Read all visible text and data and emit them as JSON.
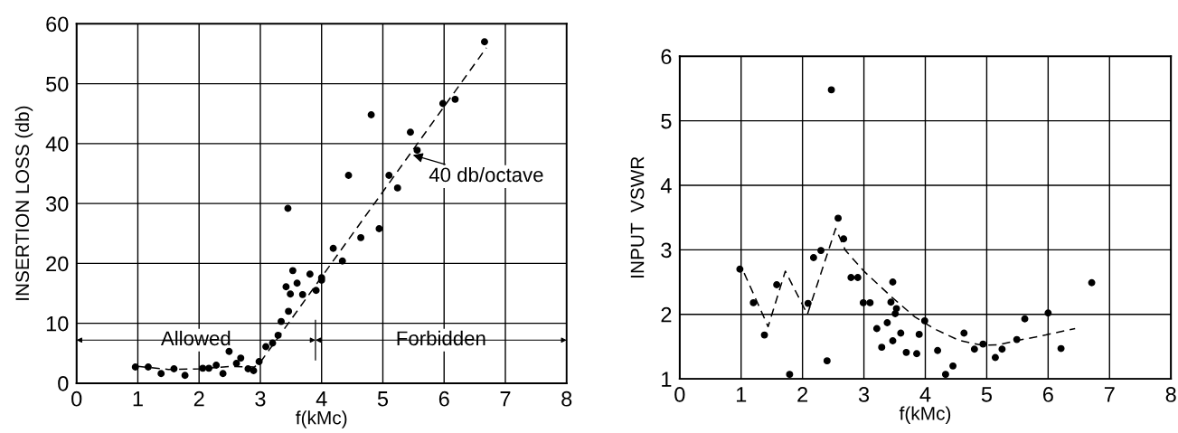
{
  "chart_data": [
    {
      "type": "scatter",
      "xlabel": "f(kMc)",
      "ylabel": "INSERTION LOSS (db)",
      "xlim": [
        0,
        8
      ],
      "ylim": [
        0,
        60
      ],
      "xticks": [
        0,
        1,
        2,
        3,
        4,
        5,
        6,
        7,
        8
      ],
      "yticks": [
        0,
        10,
        20,
        30,
        40,
        50,
        60
      ],
      "grid": true,
      "marker": "circle",
      "series": [
        {
          "color": "#000000",
          "x": [
            0.96,
            1.17,
            1.38,
            1.59,
            1.77,
            2.06,
            2.16,
            2.28,
            2.39,
            2.49,
            2.61,
            2.68,
            2.8,
            2.89,
            2.98,
            3.09,
            3.2,
            3.29,
            3.34,
            3.46,
            3.42,
            3.49,
            3.53,
            3.6,
            3.69,
            3.81,
            3.91,
            4.0,
            4.0,
            4.19,
            4.34,
            4.64,
            4.94,
            3.45,
            4.44,
            4.81,
            5.1,
            5.24,
            5.45,
            5.56,
            5.98,
            6.18,
            6.66
          ],
          "values": [
            2.7,
            2.7,
            1.6,
            2.4,
            1.3,
            2.5,
            2.5,
            3.0,
            1.6,
            5.3,
            3.3,
            4.2,
            2.4,
            2.1,
            3.6,
            6.1,
            6.7,
            8.0,
            10.3,
            12.0,
            16.1,
            14.9,
            18.8,
            16.7,
            14.8,
            18.2,
            15.5,
            17.6,
            17.2,
            22.5,
            20.4,
            24.3,
            25.8,
            29.2,
            34.7,
            44.8,
            34.7,
            32.6,
            41.9,
            38.9,
            46.7,
            47.4,
            57.0
          ]
        },
        {
          "type": "line",
          "color": "#000000",
          "line_style": "dashed",
          "marker": "none",
          "x": [
            1.0,
            1.5,
            2.0,
            2.5,
            2.9,
            3.0,
            6.69
          ],
          "values": [
            2.8,
            2.3,
            2.4,
            2.8,
            2.7,
            3.5,
            56.0
          ]
        }
      ],
      "annotations": [
        {
          "text": "40 db/octave",
          "x": 5.49,
          "y": 38.1
        },
        "Allowed",
        "Forbidden"
      ]
    },
    {
      "type": "scatter",
      "xlabel": "f(kMc)",
      "ylabel": "INPUT  VSWR",
      "xlim": [
        0,
        8
      ],
      "ylim": [
        1,
        6
      ],
      "xticks": [
        0,
        1,
        2,
        3,
        4,
        5,
        6,
        7,
        8
      ],
      "yticks": [
        1,
        2,
        3,
        4,
        5,
        6
      ],
      "grid": true,
      "marker": "circle",
      "series": [
        {
          "color": "#000000",
          "x": [
            0.98,
            1.2,
            1.38,
            1.58,
            1.79,
            2.09,
            2.18,
            2.3,
            2.4,
            2.47,
            2.58,
            2.67,
            2.79,
            2.9,
            2.99,
            3.1,
            3.21,
            3.29,
            3.38,
            3.47,
            3.44,
            3.53,
            3.51,
            3.47,
            3.6,
            3.69,
            3.86,
            3.9,
            3.99,
            4.2,
            4.33,
            4.45,
            4.63,
            4.8,
            4.94,
            5.14,
            5.25,
            5.49,
            5.62,
            6.0,
            6.21,
            6.71
          ],
          "values": [
            2.7,
            2.18,
            1.68,
            2.46,
            1.07,
            2.17,
            2.88,
            2.99,
            1.28,
            5.48,
            3.49,
            3.17,
            2.57,
            2.57,
            2.18,
            2.18,
            1.78,
            1.49,
            1.87,
            2.5,
            2.19,
            2.09,
            2.01,
            1.59,
            1.71,
            1.41,
            1.39,
            1.69,
            1.9,
            1.44,
            1.07,
            1.2,
            1.71,
            1.46,
            1.54,
            1.33,
            1.46,
            1.61,
            1.93,
            2.02,
            1.47,
            2.49
          ]
        },
        {
          "type": "line",
          "color": "#000000",
          "line_style": "dashed",
          "marker": "none",
          "x": [
            1.05,
            1.44,
            1.72,
            2.08,
            2.54,
            2.7,
            3.01,
            3.45,
            3.83,
            4.16,
            4.54,
            4.93,
            5.2,
            5.53,
            5.96,
            6.44
          ],
          "values": [
            2.64,
            1.81,
            2.67,
            2.0,
            3.33,
            2.99,
            2.66,
            2.27,
            1.96,
            1.77,
            1.6,
            1.52,
            1.53,
            1.6,
            1.68,
            1.78
          ]
        }
      ]
    }
  ]
}
